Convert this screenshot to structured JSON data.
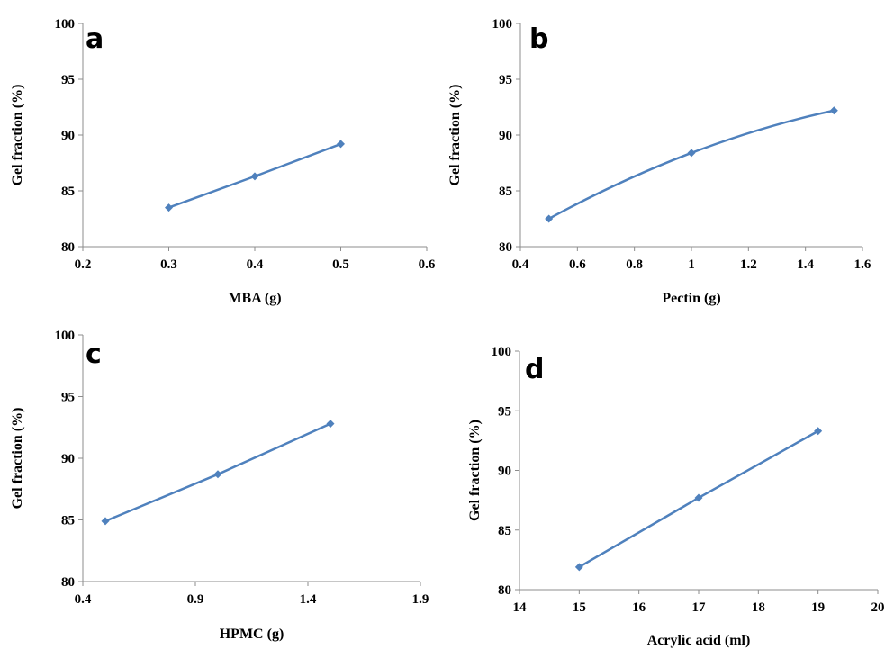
{
  "series_color": "#4f81bd",
  "chart_data": [
    {
      "type": "line",
      "panel": "a",
      "xlabel": "MBA (g)",
      "ylabel": "Gel fraction  (%)",
      "xlim": [
        0.2,
        0.6
      ],
      "ylim": [
        80,
        100
      ],
      "xticks": [
        "0.2",
        "0.3",
        "0.4",
        "0.5",
        "0.6"
      ],
      "yticks": [
        "80",
        "85",
        "90",
        "95",
        "100"
      ],
      "x": [
        0.3,
        0.4,
        0.5
      ],
      "y": [
        83.5,
        86.3,
        89.2
      ],
      "smooth": false
    },
    {
      "type": "line",
      "panel": "b",
      "xlabel": "Pectin (g)",
      "ylabel": "Gel fraction  (%)",
      "xlim": [
        0.4,
        1.6
      ],
      "ylim": [
        80,
        100
      ],
      "xticks": [
        "0.4",
        "0.6",
        "0.8",
        "1",
        "1.2",
        "1.4",
        "1.6"
      ],
      "yticks": [
        "80",
        "85",
        "90",
        "95",
        "100"
      ],
      "x": [
        0.5,
        1.0,
        1.5
      ],
      "y": [
        82.5,
        88.4,
        92.2
      ],
      "smooth": true
    },
    {
      "type": "line",
      "panel": "c",
      "xlabel": "HPMC (g)",
      "ylabel": "Gel fraction  (%)",
      "xlim": [
        0.4,
        1.9
      ],
      "ylim": [
        80,
        100
      ],
      "xticks": [
        "0.4",
        "0.9",
        "1.4",
        "1.9"
      ],
      "yticks": [
        "80",
        "85",
        "90",
        "95",
        "100"
      ],
      "x": [
        0.5,
        1.0,
        1.5
      ],
      "y": [
        84.9,
        88.7,
        92.8
      ],
      "smooth": false
    },
    {
      "type": "line",
      "panel": "d",
      "xlabel": "Acrylic acid (ml)",
      "ylabel": "Gel fraction  (%)",
      "xlim": [
        14,
        20
      ],
      "ylim": [
        80,
        100
      ],
      "xticks": [
        "14",
        "15",
        "16",
        "17",
        "18",
        "19",
        "20"
      ],
      "yticks": [
        "80",
        "85",
        "90",
        "95",
        "100"
      ],
      "x": [
        15,
        17,
        19
      ],
      "y": [
        81.9,
        87.7,
        93.3
      ],
      "smooth": false
    }
  ]
}
